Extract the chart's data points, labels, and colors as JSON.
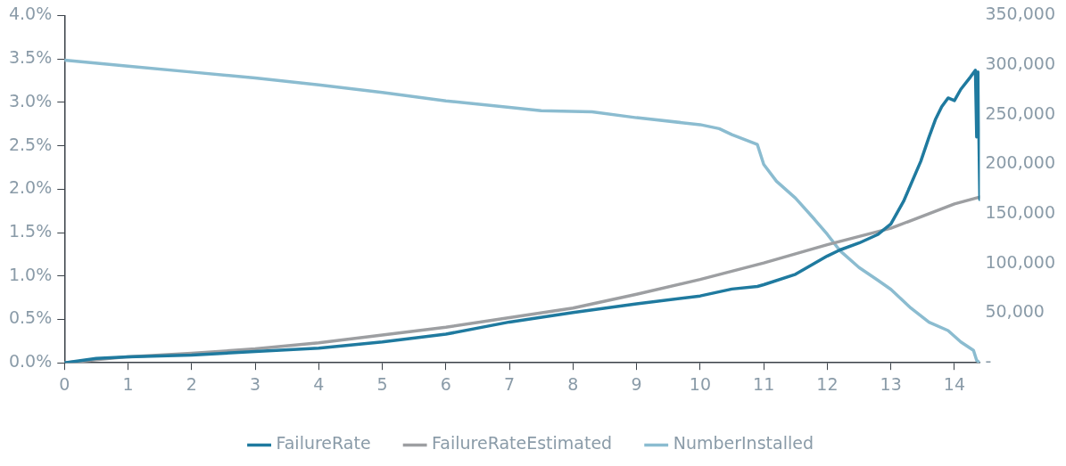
{
  "chart_data": {
    "type": "line",
    "xlim": [
      0,
      14.4
    ],
    "xticks": [
      0,
      1,
      2,
      3,
      4,
      5,
      6,
      7,
      8,
      9,
      10,
      11,
      12,
      13,
      14
    ],
    "ylim": [
      0,
      4
    ],
    "yticks": [
      {
        "value": 0,
        "label": "0.0%"
      },
      {
        "value": 0.5,
        "label": "0.5%"
      },
      {
        "value": 1,
        "label": "1.0%"
      },
      {
        "value": 1.5,
        "label": "1.5%"
      },
      {
        "value": 2,
        "label": "2.0%"
      },
      {
        "value": 2.5,
        "label": "2.5%"
      },
      {
        "value": 3,
        "label": "3.0%"
      },
      {
        "value": 3.5,
        "label": "3.5%"
      },
      {
        "value": 4,
        "label": "4.0%"
      }
    ],
    "y2lim": [
      0,
      350000
    ],
    "y2ticks": [
      {
        "value": 0,
        "label": "-"
      },
      {
        "value": 50000,
        "label": "50,000"
      },
      {
        "value": 100000,
        "label": "100,000"
      },
      {
        "value": 150000,
        "label": "150,000"
      },
      {
        "value": 200000,
        "label": "200,000"
      },
      {
        "value": 250000,
        "label": "250,000"
      },
      {
        "value": 300000,
        "label": "300,000"
      },
      {
        "value": 350000,
        "label": "350,000"
      }
    ],
    "grid": false,
    "legend": "bottom",
    "marker": "none",
    "line_style": "solid",
    "series": [
      {
        "name": "FailureRate",
        "color": "#1f7a9f",
        "x": [
          0,
          0.5,
          1,
          2,
          3,
          4,
          5,
          6,
          7,
          8,
          9,
          10,
          10.5,
          10.9,
          11,
          11.5,
          12,
          12.2,
          12.5,
          12.8,
          13,
          13.2,
          13.47,
          13.6,
          13.7,
          13.8,
          13.9,
          14,
          14.1,
          14.25,
          14.33,
          14.35,
          14.37,
          14.4
        ],
        "values": [
          0,
          0.05,
          0.07,
          0.09,
          0.13,
          0.17,
          0.24,
          0.33,
          0.47,
          0.58,
          0.68,
          0.77,
          0.85,
          0.88,
          0.9,
          1.02,
          1.23,
          1.3,
          1.38,
          1.48,
          1.6,
          1.86,
          2.32,
          2.6,
          2.8,
          2.95,
          3.05,
          3.02,
          3.15,
          3.29,
          3.37,
          2.6,
          3.35,
          1.88
        ]
      },
      {
        "name": "FailureRateEstimated",
        "color": "#9d9fa2",
        "x": [
          0,
          1,
          2,
          3,
          4,
          5,
          6,
          7,
          8,
          9,
          10,
          11,
          12,
          13,
          14,
          14.4
        ],
        "values": [
          0,
          0.07,
          0.11,
          0.16,
          0.23,
          0.32,
          0.41,
          0.52,
          0.63,
          0.79,
          0.96,
          1.15,
          1.36,
          1.55,
          1.83,
          1.91
        ]
      },
      {
        "name": "NumberInstalled",
        "color": "#8bbcd0",
        "axis": "y2",
        "x": [
          0,
          1,
          2,
          3,
          4,
          5,
          6,
          7,
          7.5,
          8.3,
          9,
          10,
          10.3,
          10.5,
          10.9,
          11,
          11.2,
          11.5,
          11.8,
          12,
          12.2,
          12.5,
          12.8,
          13,
          13.3,
          13.6,
          13.9,
          14.1,
          14.3,
          14.35,
          14.4
        ],
        "values": [
          305000,
          299000,
          293000,
          287000,
          280000,
          272500,
          264000,
          257500,
          254000,
          253000,
          247000,
          240000,
          236000,
          230000,
          220000,
          200000,
          183000,
          166000,
          144500,
          129500,
          113000,
          96000,
          83000,
          74000,
          56000,
          41000,
          32500,
          21000,
          12500,
          2500,
          0
        ]
      }
    ]
  }
}
